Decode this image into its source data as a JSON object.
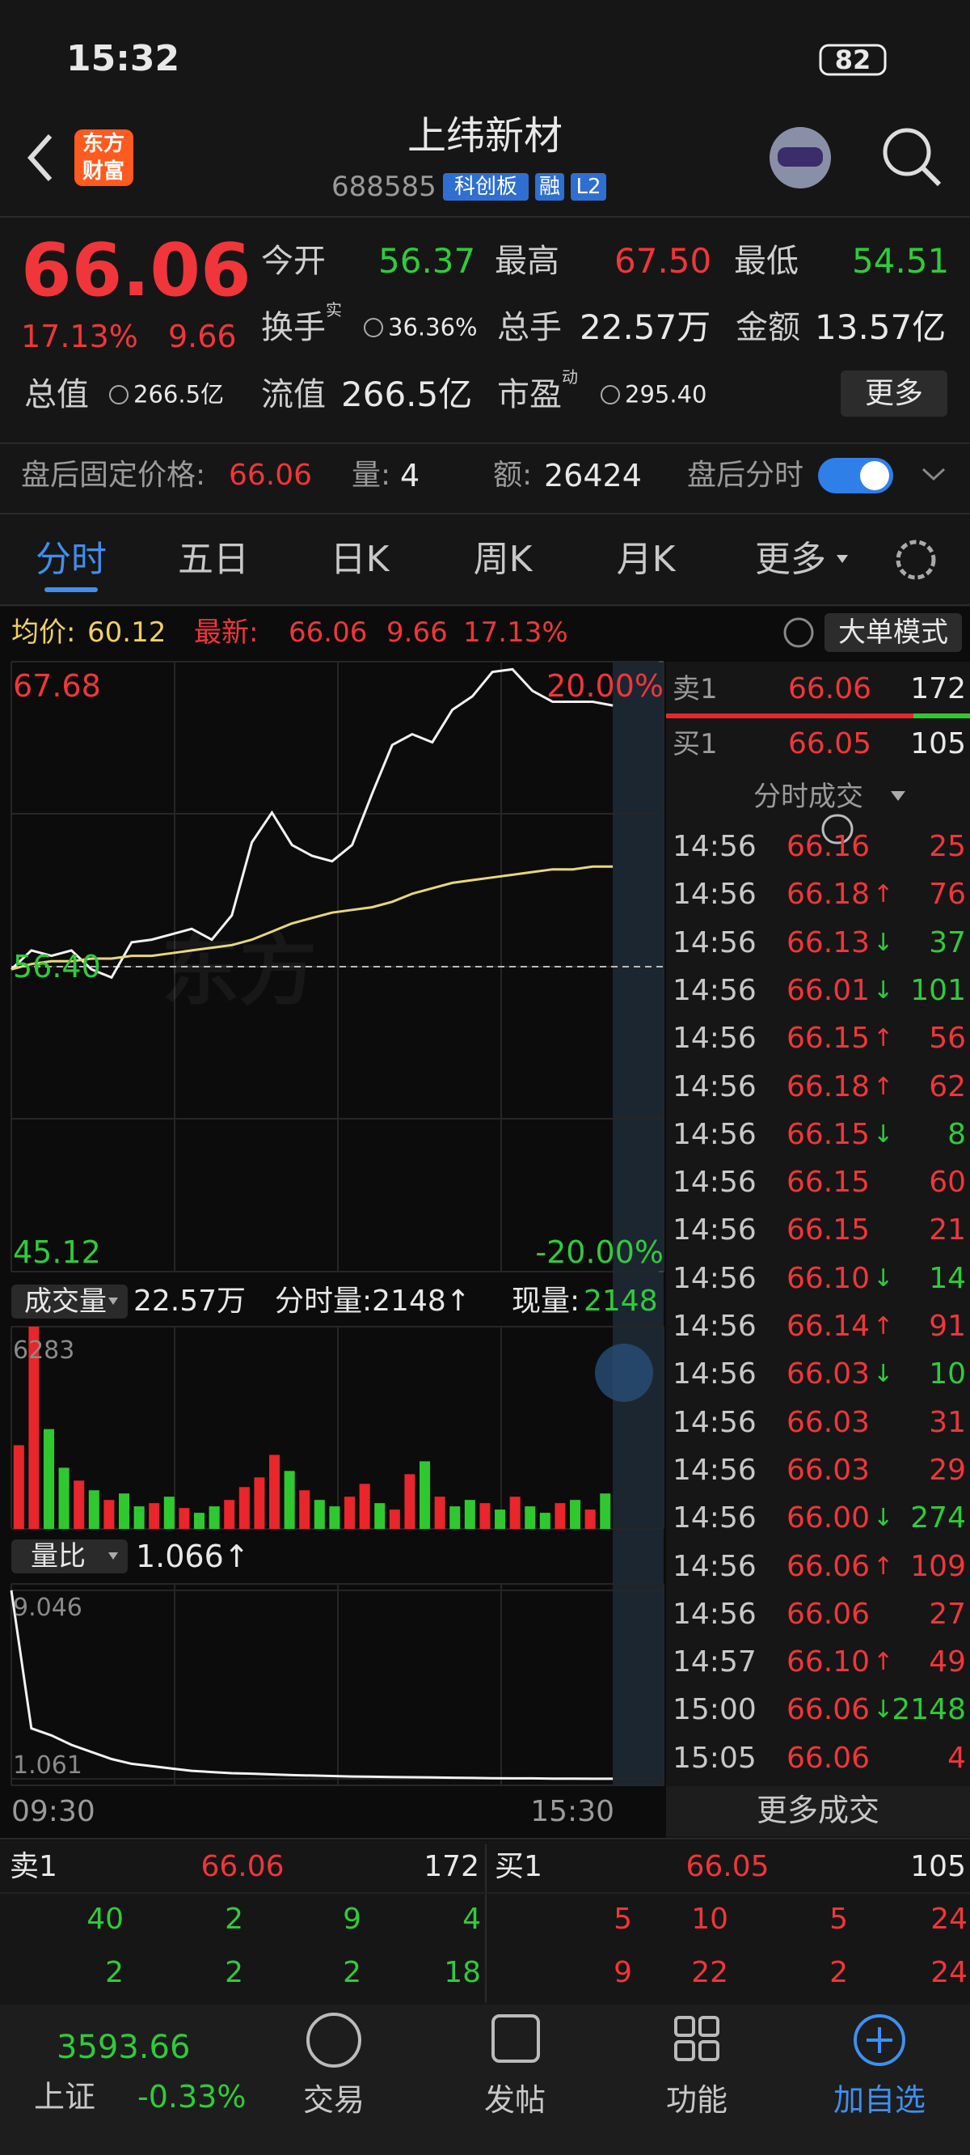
{
  "status_bar": {
    "time": "15:32",
    "battery": "82"
  },
  "header": {
    "logo": [
      "东方",
      "财富"
    ],
    "title": "上纬新材",
    "code": "688585",
    "tags": [
      "科创板",
      "融",
      "L2"
    ]
  },
  "quote": {
    "price": "66.06",
    "change_pct": "17.13%",
    "change": "9.66",
    "stats": [
      {
        "label": "今开",
        "value": "56.37"
      },
      {
        "label": "最高",
        "value": "67.50"
      },
      {
        "label": "最低",
        "value": "54.51"
      },
      {
        "label": "换手",
        "sup": "实",
        "value": "36.36%"
      },
      {
        "label": "总手",
        "value": "22.57万"
      },
      {
        "label": "金额",
        "value": "13.57亿"
      },
      {
        "label": "总值",
        "value": "266.5亿"
      },
      {
        "label": "流值",
        "value": "266.5亿"
      },
      {
        "label": "市盈",
        "sup": "动",
        "value": "295.40"
      }
    ],
    "more": "更多"
  },
  "after_hours": {
    "price_label": "盘后固定价格:",
    "price": "66.06",
    "volume_label": "量:",
    "volume": "4",
    "amount_label": "额:",
    "amount": "26424",
    "toggle_label": "盘后分时"
  },
  "tabs": [
    "分时",
    "五日",
    "日K",
    "周K",
    "月K",
    "更多"
  ],
  "chart_info": {
    "avg_label": "均价:",
    "avg": "60.12",
    "last_label": "最新:",
    "last": "66.06",
    "change": "9.66",
    "change_pct": "17.13%",
    "mode_button": "大单模式"
  },
  "chart_data": [
    {
      "type": "line",
      "series": [
        {
          "color": "#f2f2f2",
          "values": [
            56.3,
            57.0,
            56.8,
            57.0,
            56.3,
            56.0,
            57.3,
            57.4,
            57.6,
            57.8,
            57.4,
            58.3,
            61.0,
            62.1,
            60.9,
            60.5,
            60.3,
            60.9,
            62.8,
            64.6,
            65.0,
            64.7,
            65.9,
            66.4,
            67.3,
            67.4,
            66.6,
            66.2,
            66.2,
            66.2,
            66.06
          ]
        },
        {
          "color": "#e8d77a",
          "values": [
            56.3,
            56.5,
            56.6,
            56.6,
            56.7,
            56.7,
            56.8,
            56.8,
            56.9,
            57.0,
            57.1,
            57.2,
            57.4,
            57.7,
            58.0,
            58.2,
            58.4,
            58.5,
            58.6,
            58.8,
            59.1,
            59.3,
            59.5,
            59.6,
            59.7,
            59.8,
            59.9,
            60.0,
            60.0,
            60.1,
            60.1
          ]
        }
      ],
      "ylim": [
        45.12,
        67.68
      ],
      "yticks": [
        67.68,
        {
          "value": 56.4,
          "label": "56.40"
        },
        45.12
      ],
      "y2lim": [
        -20,
        20
      ],
      "y2ticks": [
        {
          "value": 20,
          "label": "20.00%"
        },
        {
          "value": -20,
          "label": "-20.00%"
        }
      ]
    },
    {
      "type": "bar",
      "values": [
        2600,
        6283,
        3100,
        1900,
        1500,
        1200,
        900,
        1100,
        700,
        800,
        1000,
        650,
        500,
        700,
        900,
        1300,
        1600,
        2300,
        1800,
        1200,
        900,
        700,
        1000,
        1400,
        800,
        600,
        1700,
        2100,
        1000,
        700,
        900,
        800,
        600,
        1000,
        700,
        500,
        800,
        900,
        600,
        1100
      ],
      "colors": [
        "#e8262b",
        "#e8262b",
        "#2fc92f",
        "#2fc92f",
        "#e8262b",
        "#2fc92f",
        "#e8262b",
        "#2fc92f",
        "#2fc92f",
        "#e8262b",
        "#2fc92f",
        "#e8262b",
        "#2fc92f",
        "#2fc92f",
        "#e8262b",
        "#e8262b",
        "#e8262b",
        "#e8262b",
        "#2fc92f",
        "#e8262b",
        "#2fc92f",
        "#2fc92f",
        "#e8262b",
        "#e8262b",
        "#2fc92f",
        "#e8262b",
        "#e8262b",
        "#2fc92f",
        "#e8262b",
        "#2fc92f",
        "#2fc92f",
        "#e8262b",
        "#2fc92f",
        "#e8262b",
        "#2fc92f",
        "#2fc92f",
        "#e8262b",
        "#2fc92f",
        "#e8262b",
        "#2fc92f"
      ],
      "ylim": [
        0,
        6283
      ],
      "yticks": [
        6283
      ]
    },
    {
      "type": "line",
      "color": "#f2f2f2",
      "values": [
        9.046,
        3.2,
        2.9,
        2.5,
        2.2,
        1.9,
        1.7,
        1.6,
        1.5,
        1.4,
        1.35,
        1.3,
        1.28,
        1.25,
        1.22,
        1.2,
        1.18,
        1.16,
        1.15,
        1.14,
        1.13,
        1.12,
        1.11,
        1.1,
        1.09,
        1.08,
        1.08,
        1.07,
        1.07,
        1.066,
        1.066
      ],
      "ylim": [
        1.061,
        9.046
      ],
      "yticks": [
        9.046,
        1.061
      ]
    }
  ],
  "volume_info": {
    "label": "成交量",
    "total": "22.57万",
    "minute": "分时量:2148↑",
    "current_label": "现量:",
    "current": "2148"
  },
  "ratio_info": {
    "label": "量比",
    "value": "1.066↑"
  },
  "time_axis": [
    "09:30",
    "15:30"
  ],
  "order_panel": {
    "ask": {
      "label": "卖1",
      "price": "66.06",
      "volume": "172"
    },
    "bid": {
      "label": "买1",
      "price": "66.05",
      "volume": "105"
    }
  },
  "trades": {
    "title": "分时成交",
    "more": "更多成交",
    "rows": [
      {
        "time": "14:56",
        "price": "66.16",
        "volume": "25"
      },
      {
        "time": "14:56",
        "price": "66.18",
        "arrow": "↑",
        "volume": "76"
      },
      {
        "time": "14:56",
        "price": "66.13",
        "arrow": "↓",
        "volume": "37"
      },
      {
        "time": "14:56",
        "price": "66.01",
        "arrow": "↓",
        "volume": "101"
      },
      {
        "time": "14:56",
        "price": "66.15",
        "arrow": "↑",
        "volume": "56"
      },
      {
        "time": "14:56",
        "price": "66.18",
        "arrow": "↑",
        "volume": "62"
      },
      {
        "time": "14:56",
        "price": "66.15",
        "arrow": "↓",
        "volume": "8"
      },
      {
        "time": "14:56",
        "price": "66.15",
        "volume": "60"
      },
      {
        "time": "14:56",
        "price": "66.15",
        "volume": "21"
      },
      {
        "time": "14:56",
        "price": "66.10",
        "arrow": "↓",
        "volume": "14"
      },
      {
        "time": "14:56",
        "price": "66.14",
        "arrow": "↑",
        "volume": "91"
      },
      {
        "time": "14:56",
        "price": "66.03",
        "arrow": "↓",
        "volume": "10"
      },
      {
        "time": "14:56",
        "price": "66.03",
        "volume": "31"
      },
      {
        "time": "14:56",
        "price": "66.03",
        "volume": "29"
      },
      {
        "time": "14:56",
        "price": "66.00",
        "arrow": "↓",
        "volume": "274"
      },
      {
        "time": "14:56",
        "price": "66.06",
        "arrow": "↑",
        "volume": "109"
      },
      {
        "time": "14:56",
        "price": "66.06",
        "volume": "27"
      },
      {
        "time": "14:57",
        "price": "66.10",
        "arrow": "↑",
        "volume": "49"
      },
      {
        "time": "15:00",
        "price": "66.06",
        "arrow": "↓",
        "volume": "2148"
      },
      {
        "time": "15:05",
        "price": "66.06",
        "volume": "4"
      }
    ]
  },
  "order_book": {
    "ask": {
      "label": "卖1",
      "price": "66.06",
      "volume": "172",
      "rows": [
        [
          "40",
          "2",
          "9",
          "4"
        ],
        [
          "2",
          "2",
          "2",
          "18"
        ]
      ]
    },
    "bid": {
      "label": "买1",
      "price": "66.05",
      "volume": "105",
      "rows": [
        [
          "5",
          "10",
          "5",
          "24"
        ],
        [
          "9",
          "22",
          "2",
          "24"
        ]
      ]
    }
  },
  "bottom_nav": {
    "index_value": "3593.66",
    "index_name": "上证",
    "index_change": "-0.33%",
    "items": [
      "交易",
      "发帖",
      "功能",
      "加自选"
    ]
  }
}
